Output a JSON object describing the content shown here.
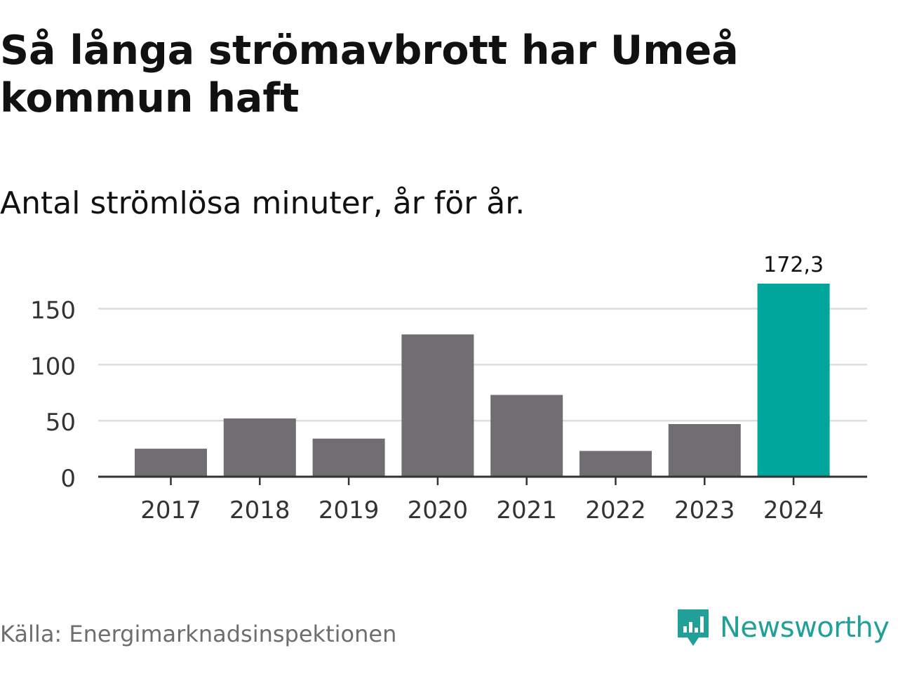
{
  "title": "Så långa strömavbrott har Umeå kommun haft",
  "subtitle": "Antal strömlösa minuter, år för år.",
  "source": "Källa: Energimarknadsinspektionen",
  "brand": {
    "name": "Newsworthy",
    "icon": "newsworthy-logo-icon",
    "color": "#21a09a"
  },
  "chart_data": {
    "type": "bar",
    "categories": [
      "2017",
      "2018",
      "2019",
      "2020",
      "2021",
      "2022",
      "2023",
      "2024"
    ],
    "values": [
      25,
      52,
      34,
      127,
      73,
      23,
      47,
      172.3
    ],
    "ylim": [
      0,
      172.3
    ],
    "yticks": [
      0,
      50,
      100,
      150
    ],
    "ytick_labels": [
      "0",
      "50",
      "100",
      "150"
    ],
    "grid": true,
    "colors": {
      "default": "#706e73",
      "highlight": "#00a59c",
      "grid": "#dcdcdc",
      "axis": "#333333"
    },
    "highlight_index": 7,
    "data_labels": [
      {
        "index": 7,
        "text": "172,3"
      }
    ]
  }
}
